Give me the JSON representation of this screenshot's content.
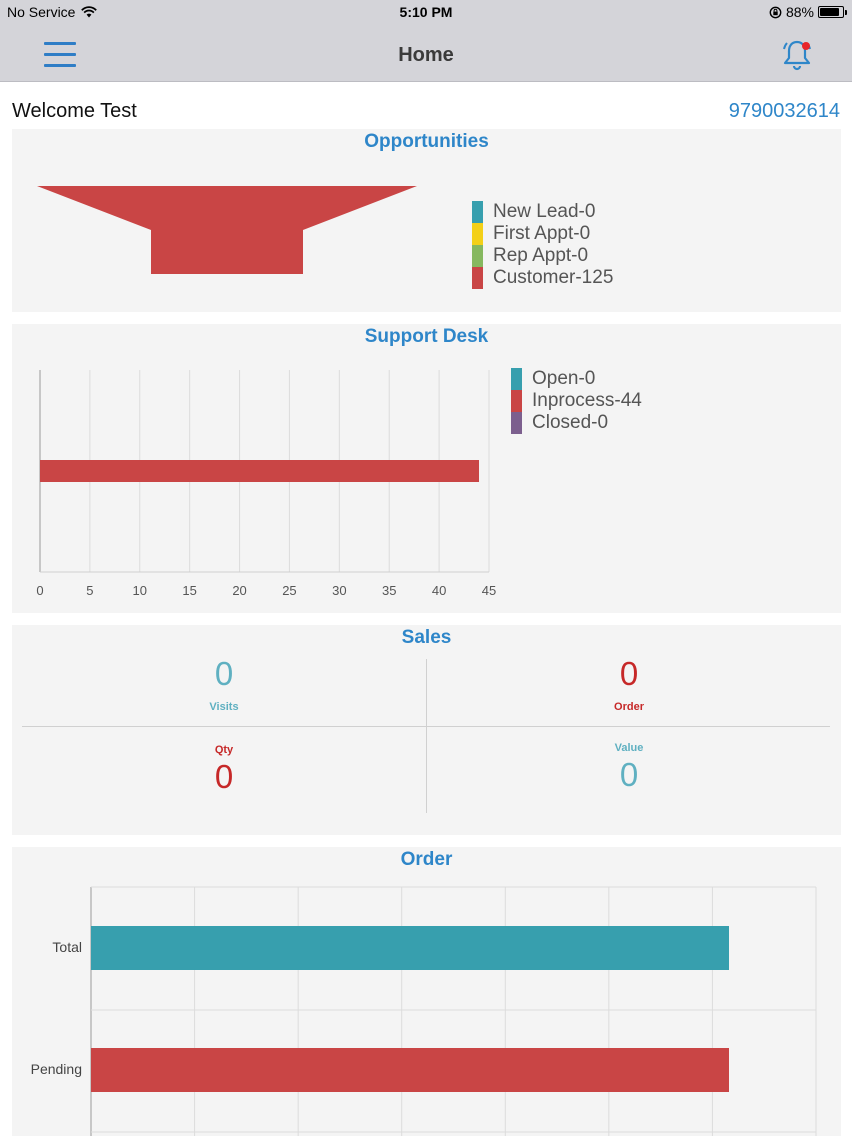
{
  "status_bar": {
    "carrier": "No Service",
    "time": "5:10 PM",
    "battery": "88%",
    "battery_level": 0.88
  },
  "nav": {
    "title": "Home",
    "menu_icon": "hamburger-menu-icon",
    "bell_icon": "bell-icon"
  },
  "welcome": "Welcome Test",
  "phone": "9790032614",
  "colors": {
    "accent": "#2e86c9",
    "teal": "#379fae",
    "red": "#c94545",
    "yellow": "#f3d018",
    "green": "#86b85f",
    "purple": "#7c5f8e",
    "sales_red": "#c62828",
    "sales_teal": "#5fb0c1"
  },
  "opportunities": {
    "title": "Opportunities",
    "chart_data": {
      "type": "funnel",
      "categories": [
        "New Lead",
        "First Appt",
        "Rep Appt",
        "Customer"
      ],
      "values": [
        0,
        0,
        0,
        125
      ],
      "legend": [
        "New Lead-0",
        "First Appt-0",
        "Rep Appt-0",
        "Customer-125"
      ],
      "legend_colors": [
        "#379fae",
        "#f3d018",
        "#86b85f",
        "#c94545"
      ],
      "legend_position": "right"
    }
  },
  "support_desk": {
    "title": "Support Desk",
    "chart_data": {
      "type": "bar",
      "orientation": "horizontal",
      "categories": [
        "Open",
        "Inprocess",
        "Closed"
      ],
      "values": [
        0,
        44,
        0
      ],
      "colors": [
        "#379fae",
        "#c94545",
        "#7c5f8e"
      ],
      "legend": [
        "Open-0",
        "Inprocess-44",
        "Closed-0"
      ],
      "legend_position": "right",
      "xlim": [
        0,
        45
      ],
      "x_ticks": [
        "0",
        "5",
        "10",
        "15",
        "20",
        "25",
        "30",
        "35",
        "40",
        "45"
      ],
      "grid": true
    }
  },
  "sales": {
    "title": "Sales",
    "cells": [
      {
        "value": "0",
        "label": "Visits"
      },
      {
        "value": "0",
        "label": "Order"
      },
      {
        "value": "0",
        "label": "Qty"
      },
      {
        "value": "0",
        "label": "Value"
      }
    ]
  },
  "order": {
    "title": "Order",
    "chart_data": {
      "type": "bar",
      "orientation": "horizontal",
      "categories": [
        "Total",
        "Pending"
      ],
      "values": [
        125,
        125
      ],
      "colors": [
        "#379fae",
        "#c94545"
      ],
      "grid": true
    }
  }
}
